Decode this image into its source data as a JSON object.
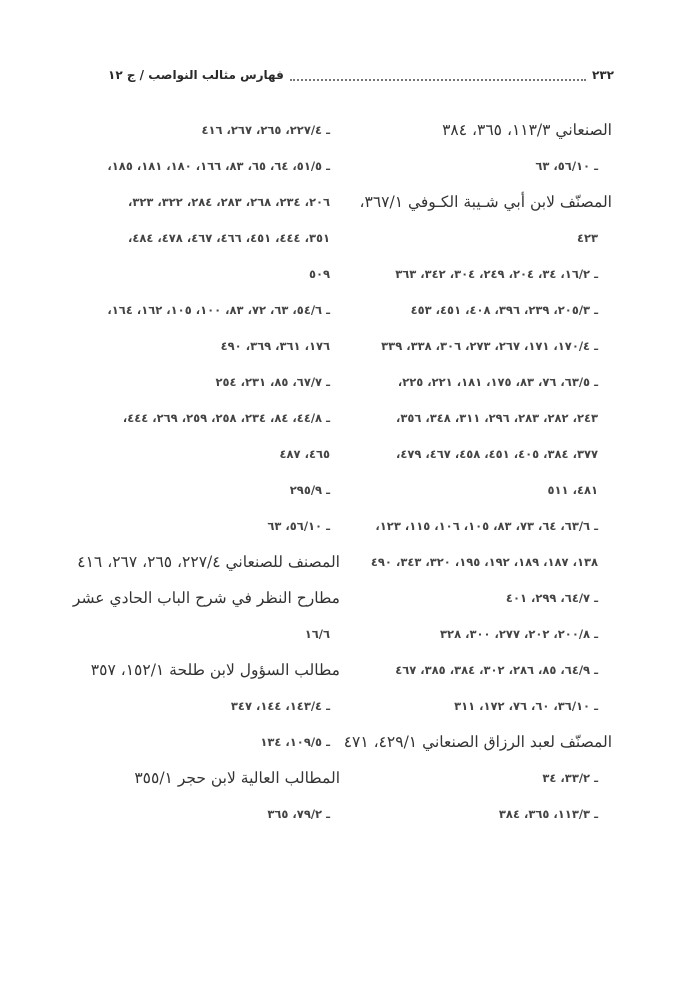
{
  "header": {
    "page_number": "٢٣٢",
    "running_title": "فهارس مثالب النواصب / ج ١٢"
  },
  "right_column": [
    {
      "type": "title",
      "text": "الصنعاني ١١٣/٣، ٣٦٥، ٣٨٤"
    },
    {
      "type": "sub",
      "text": "ـ ٥٦/١٠، ٦٣"
    },
    {
      "type": "title",
      "text": "المصنّف لابن أبي شـيبة الكـوفي ٣٦٧/١،"
    },
    {
      "type": "sub",
      "text": "٤٢٣"
    },
    {
      "type": "sub",
      "text": "ـ ١٦/٢، ٣٤، ٢٠٤، ٢٤٩، ٣٠٤، ٣٤٢، ٣٦٣"
    },
    {
      "type": "sub",
      "text": "ـ ٢٠٥/٣، ٢٣٩، ٣٩٦، ٤٠٨، ٤٥١، ٤٥٣"
    },
    {
      "type": "sub",
      "text": "ـ ١٧٠/٤، ١٧١، ٢٦٧، ٢٧٣، ٣٠٦، ٣٣٨، ٣٣٩"
    },
    {
      "type": "sub",
      "text": "ـ ٦٣/٥، ٧٦، ٨٣، ١٧٥، ١٨١، ٢٢١، ٢٢٥،"
    },
    {
      "type": "sub",
      "text": "٢٤٣، ٢٨٢، ٢٨٣، ٢٩٦، ٣١١، ٣٤٨، ٣٥٦،"
    },
    {
      "type": "sub",
      "text": "٣٧٧، ٣٨٤، ٤٠٥، ٤٥١، ٤٥٨، ٤٦٧، ٤٧٩،"
    },
    {
      "type": "sub",
      "text": "٤٨١، ٥١١"
    },
    {
      "type": "sub",
      "text": "ـ ٦٣/٦، ٦٤، ٧٣، ٨٣، ١٠٥، ١٠٦، ١١٥، ١٢٣،"
    },
    {
      "type": "sub",
      "text": "١٣٨، ١٨٧، ١٨٩، ١٩٢، ١٩٥، ٣٢٠، ٣٤٣، ٤٩٠"
    },
    {
      "type": "sub",
      "text": "ـ ٦٤/٧، ٢٩٩، ٤٠١"
    },
    {
      "type": "sub",
      "text": "ـ ٢٠٠/٨، ٢٠٢، ٢٧٧، ٣٠٠، ٣٢٨"
    },
    {
      "type": "sub",
      "text": "ـ ٦٤/٩، ٨٥، ٢٨٦، ٣٠٢، ٣٨٤، ٣٨٥، ٤٦٧"
    },
    {
      "type": "sub",
      "text": "ـ ٣٦/١٠، ٦٠، ٧٦، ١٧٢، ٣١١"
    },
    {
      "type": "title",
      "text": "المصنّف لعبد الرزاق الصنعاني ٤٢٩/١، ٤٧١"
    },
    {
      "type": "sub",
      "text": "ـ ٣٣/٢، ٣٤"
    },
    {
      "type": "sub",
      "text": "ـ ١١٣/٣، ٣٦٥، ٣٨٤"
    }
  ],
  "left_column": [
    {
      "type": "sub",
      "text": "ـ ٢٢٧/٤، ٢٦٥، ٢٦٧، ٤١٦"
    },
    {
      "type": "sub",
      "text": "ـ ٥١/٥، ٦٤، ٦٥، ٨٣، ١٦٦، ١٨٠، ١٨١، ١٨٥،"
    },
    {
      "type": "sub",
      "text": "٢٠٦، ٢٣٤، ٢٦٨، ٢٨٣، ٢٨٤، ٣٢٢، ٣٢٣،"
    },
    {
      "type": "sub",
      "text": "٣٥١، ٤٤٤، ٤٥١، ٤٦٦، ٤٦٧، ٤٧٨، ٤٨٤،"
    },
    {
      "type": "sub",
      "text": "٥٠٩"
    },
    {
      "type": "sub",
      "text": "ـ ٥٤/٦، ٦٣، ٧٢، ٨٣، ١٠٠، ١٠٥، ١٦٢، ١٦٤،"
    },
    {
      "type": "sub",
      "text": "١٧٦، ٣٦١، ٣٦٩، ٤٩٠"
    },
    {
      "type": "sub",
      "text": "ـ ٦٧/٧، ٨٥، ٢٣١، ٢٥٤"
    },
    {
      "type": "sub",
      "text": "ـ ٤٤/٨، ٨٤، ٢٣٤، ٢٥٨، ٢٥٩، ٢٦٩، ٤٤٤،"
    },
    {
      "type": "sub",
      "text": "٤٦٥، ٤٨٧"
    },
    {
      "type": "sub",
      "text": "ـ ٢٩٥/٩"
    },
    {
      "type": "sub",
      "text": "ـ ٥٦/١٠، ٦٣"
    },
    {
      "type": "title",
      "text": "المصنف للصنعاني ٢٢٧/٤، ٢٦٥، ٢٦٧، ٤١٦"
    },
    {
      "type": "title",
      "text": "مطارح النظر في شرح الباب الحادي عشر"
    },
    {
      "type": "sub",
      "text": "١٦/٦"
    },
    {
      "type": "title",
      "text": "مطالب السؤول لابن طلحة ١٥٢/١، ٣٥٧"
    },
    {
      "type": "sub",
      "text": "ـ ١٤٣/٤، ١٤٤، ٣٤٧"
    },
    {
      "type": "sub",
      "text": "ـ ١٠٩/٥، ١٣٤"
    },
    {
      "type": "title",
      "text": "المطالب العالية لابن حجر ٣٥٥/١"
    },
    {
      "type": "sub",
      "text": "ـ ٧٩/٢، ٣٦٥"
    }
  ]
}
